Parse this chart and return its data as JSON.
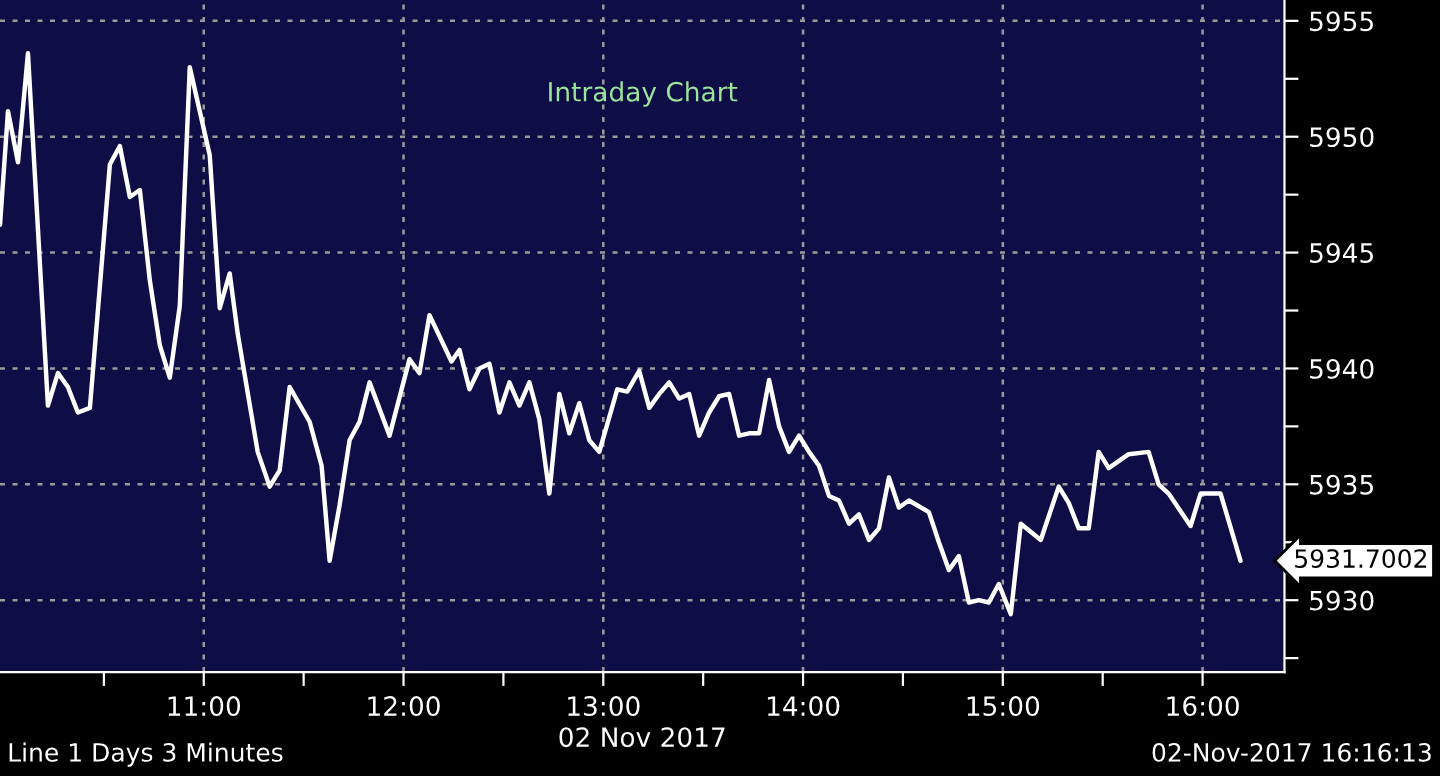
{
  "chart_data": {
    "type": "line",
    "title": "Intraday Chart",
    "xlabel": "02 Nov 2017",
    "annotations": [
      {
        "text": "5931.7002",
        "x": 16.19,
        "y": 5931.7
      },
      "Line 1 Days 3 Minutes",
      "02-Nov-2017 16:16:13"
    ],
    "x": [
      9.98,
      10.02,
      10.07,
      10.12,
      10.22,
      10.27,
      10.32,
      10.37,
      10.43,
      10.53,
      10.58,
      10.63,
      10.68,
      10.73,
      10.78,
      10.83,
      10.88,
      10.93,
      11.03,
      11.08,
      11.13,
      11.17,
      11.27,
      11.33,
      11.38,
      11.43,
      11.53,
      11.59,
      11.63,
      11.68,
      11.73,
      11.78,
      11.83,
      11.93,
      12.03,
      12.08,
      12.13,
      12.24,
      12.28,
      12.33,
      12.38,
      12.43,
      12.48,
      12.53,
      12.58,
      12.63,
      12.68,
      12.73,
      12.78,
      12.83,
      12.88,
      12.93,
      12.98,
      13.07,
      13.12,
      13.18,
      13.23,
      13.28,
      13.33,
      13.38,
      13.43,
      13.48,
      13.53,
      13.58,
      13.63,
      13.68,
      13.73,
      13.78,
      13.83,
      13.88,
      13.93,
      13.98,
      14.03,
      14.08,
      14.13,
      14.18,
      14.23,
      14.28,
      14.33,
      14.38,
      14.43,
      14.48,
      14.53,
      14.63,
      14.68,
      14.73,
      14.78,
      14.83,
      14.88,
      14.93,
      14.98,
      15.04,
      15.09,
      15.19,
      15.28,
      15.33,
      15.38,
      15.43,
      15.48,
      15.53,
      15.63,
      15.73,
      15.78,
      15.83,
      15.94,
      15.99,
      16.09,
      16.19
    ],
    "series": [
      {
        "color": "#ffffff",
        "values": [
          5946.2,
          5951.1,
          5948.9,
          5953.6,
          5938.4,
          5939.8,
          5939.2,
          5938.1,
          5938.3,
          5948.8,
          5949.6,
          5947.4,
          5947.7,
          5943.8,
          5941.0,
          5939.6,
          5942.7,
          5953.0,
          5949.2,
          5942.6,
          5944.1,
          5941.5,
          5936.4,
          5934.9,
          5935.6,
          5939.2,
          5937.7,
          5935.8,
          5931.7,
          5934.1,
          5936.9,
          5937.7,
          5939.4,
          5937.1,
          5940.4,
          5939.8,
          5942.3,
          5940.3,
          5940.8,
          5939.1,
          5940.0,
          5940.2,
          5938.1,
          5939.4,
          5938.4,
          5939.4,
          5937.8,
          5934.6,
          5938.9,
          5937.2,
          5938.5,
          5936.9,
          5936.4,
          5939.1,
          5939.0,
          5939.9,
          5938.3,
          5938.9,
          5939.4,
          5938.7,
          5938.9,
          5937.1,
          5938.1,
          5938.8,
          5938.9,
          5937.1,
          5937.2,
          5937.2,
          5939.5,
          5937.5,
          5936.4,
          5937.1,
          5936.4,
          5935.8,
          5934.5,
          5934.3,
          5933.3,
          5933.7,
          5932.6,
          5933.1,
          5935.3,
          5934.0,
          5934.3,
          5933.8,
          5932.5,
          5931.3,
          5931.9,
          5929.9,
          5930.0,
          5929.9,
          5930.7,
          5929.4,
          5933.3,
          5932.6,
          5934.9,
          5934.2,
          5933.1,
          5933.1,
          5936.4,
          5935.7,
          5936.3,
          5936.4,
          5935.0,
          5934.6,
          5933.2,
          5934.6,
          5934.6,
          5931.7
        ]
      }
    ],
    "xlim": [
      9.98,
      16.41
    ],
    "ylim": [
      5926.9,
      5955.9
    ],
    "xticks": [
      {
        "value": 10.5,
        "label": null
      },
      {
        "value": 11,
        "label": "11:00"
      },
      {
        "value": 11.5,
        "label": null
      },
      {
        "value": 12,
        "label": "12:00"
      },
      {
        "value": 12.5,
        "label": null
      },
      {
        "value": 13,
        "label": "13:00"
      },
      {
        "value": 13.5,
        "label": null
      },
      {
        "value": 14,
        "label": "14:00"
      },
      {
        "value": 14.5,
        "label": null
      },
      {
        "value": 15,
        "label": "15:00"
      },
      {
        "value": 15.5,
        "label": null
      },
      {
        "value": 16,
        "label": "16:00"
      }
    ],
    "yticks": [
      {
        "value": 5927.5,
        "label": null
      },
      5930,
      {
        "value": 5932.5,
        "label": null
      },
      5935,
      {
        "value": 5937.5,
        "label": null
      },
      5940,
      {
        "value": 5942.5,
        "label": null
      },
      5945,
      {
        "value": 5947.5,
        "label": null
      },
      5950,
      {
        "value": 5952.5,
        "label": null
      },
      5955
    ],
    "grid": true,
    "marker": "none",
    "line_style": "solid"
  }
}
